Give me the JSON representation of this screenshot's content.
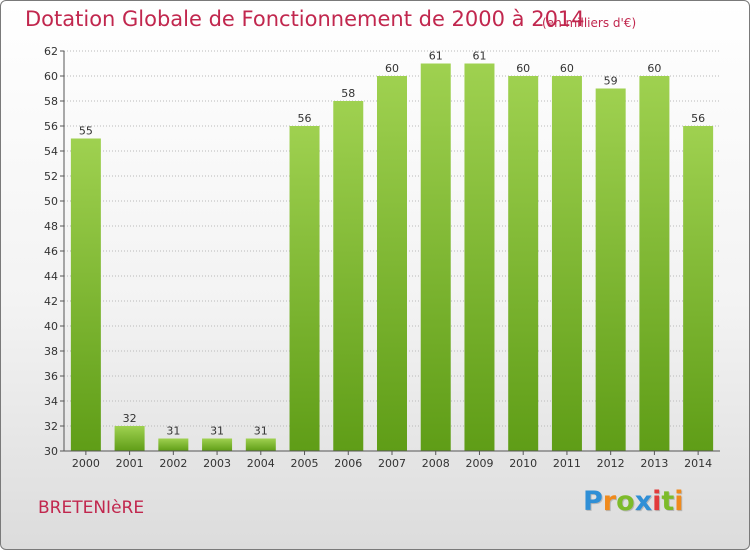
{
  "header": {
    "title": "Dotation Globale de Fonctionnement de 2000 à 2014",
    "units": "(en milliers d'€)"
  },
  "footer": {
    "commune": "BRETENIèRE",
    "brand_letters": [
      {
        "char": "P",
        "color": "#2f8fd6"
      },
      {
        "char": "r",
        "color": "#f08a1c"
      },
      {
        "char": "o",
        "color": "#7dbb2a"
      },
      {
        "char": "x",
        "color": "#2f8fd6"
      },
      {
        "char": "i",
        "color": "#e23a3a"
      },
      {
        "char": "t",
        "color": "#7dbb2a"
      },
      {
        "char": "i",
        "color": "#f08a1c"
      }
    ]
  },
  "colors": {
    "bar_top": "#9fd150",
    "bar_bottom": "#5f9d17",
    "title": "#c1274e",
    "grid": "#b9b9b9",
    "axis_text": "#333333"
  },
  "chart_data": {
    "type": "bar",
    "title": "Dotation Globale de Fonctionnement de 2000 à 2014",
    "subtitle": "(en milliers d'€)",
    "xlabel": "",
    "ylabel": "",
    "categories": [
      "2000",
      "2001",
      "2002",
      "2003",
      "2004",
      "2005",
      "2006",
      "2007",
      "2008",
      "2009",
      "2010",
      "2011",
      "2012",
      "2013",
      "2014"
    ],
    "values": [
      55,
      32,
      31,
      31,
      31,
      56,
      58,
      60,
      61,
      61,
      60,
      60,
      59,
      60,
      56
    ],
    "ylim": [
      30,
      62
    ],
    "yticks": [
      30,
      32,
      34,
      36,
      38,
      40,
      42,
      44,
      46,
      48,
      50,
      52,
      54,
      56,
      58,
      60,
      62
    ],
    "grid": true,
    "legend": "none"
  }
}
